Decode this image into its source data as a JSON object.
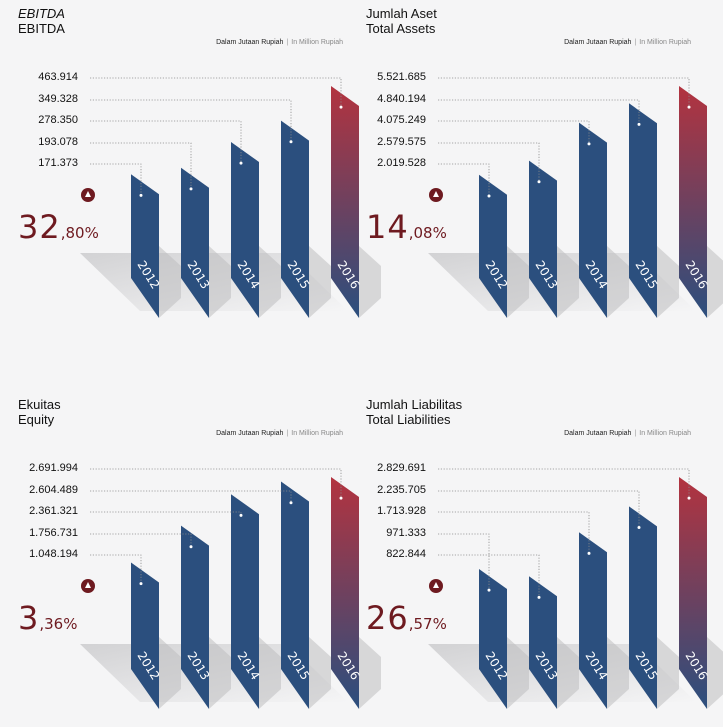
{
  "unit_text": {
    "id": "Dalam Jutaan Rupiah",
    "sep": "|",
    "en": "In Million Rupiah"
  },
  "chart_data": [
    {
      "type": "bar",
      "title": "EBITDA",
      "subtitle": "EBITDA",
      "categories": [
        "2012",
        "2013",
        "2014",
        "2015",
        "2016"
      ],
      "values": [
        171373,
        193078,
        278350,
        349328,
        463914
      ],
      "value_labels": [
        "171.373",
        "193.078",
        "278.350",
        "349.328",
        "463.914"
      ],
      "growth_int": "32",
      "growth_dec": ",80%",
      "accent": "#6e1a20"
    },
    {
      "type": "bar",
      "title": "Jumlah Aset",
      "subtitle": "Total Assets",
      "categories": [
        "2012",
        "2013",
        "2014",
        "2015",
        "2016"
      ],
      "values": [
        2019528,
        2579575,
        4075249,
        4840194,
        5521685
      ],
      "value_labels": [
        "2.019.528",
        "2.579.575",
        "4.075.249",
        "4.840.194",
        "5.521.685"
      ],
      "growth_int": "14",
      "growth_dec": ",08%",
      "accent": "#6e1a20"
    },
    {
      "type": "bar",
      "title": "Ekuitas",
      "subtitle": "Equity",
      "categories": [
        "2012",
        "2013",
        "2014",
        "2015",
        "2016"
      ],
      "values": [
        1048194,
        1756731,
        2361321,
        2604489,
        2691994
      ],
      "value_labels": [
        "1.048.194",
        "1.756.731",
        "2.361.321",
        "2.604.489",
        "2.691.994"
      ],
      "growth_int": "3",
      "growth_dec": ",36%",
      "accent": "#6e1a20"
    },
    {
      "type": "bar",
      "title": "Jumlah Liabilitas",
      "subtitle": "Total Liabilities",
      "categories": [
        "2012",
        "2013",
        "2014",
        "2015",
        "2016"
      ],
      "values": [
        971333,
        822844,
        1713928,
        2235705,
        2829691
      ],
      "value_labels": [
        "971.333",
        "822.844",
        "1.713.928",
        "2.235.705",
        "2.829.691"
      ],
      "growth_int": "26",
      "growth_dec": ",57%",
      "accent": "#6e1a20"
    }
  ],
  "colors": {
    "bar": "#2b4f7e",
    "bar_side": "#1d3a5f",
    "highlight_top": "#b3333f",
    "shadow": "#c9c9cb",
    "accent": "#6e1a20"
  }
}
